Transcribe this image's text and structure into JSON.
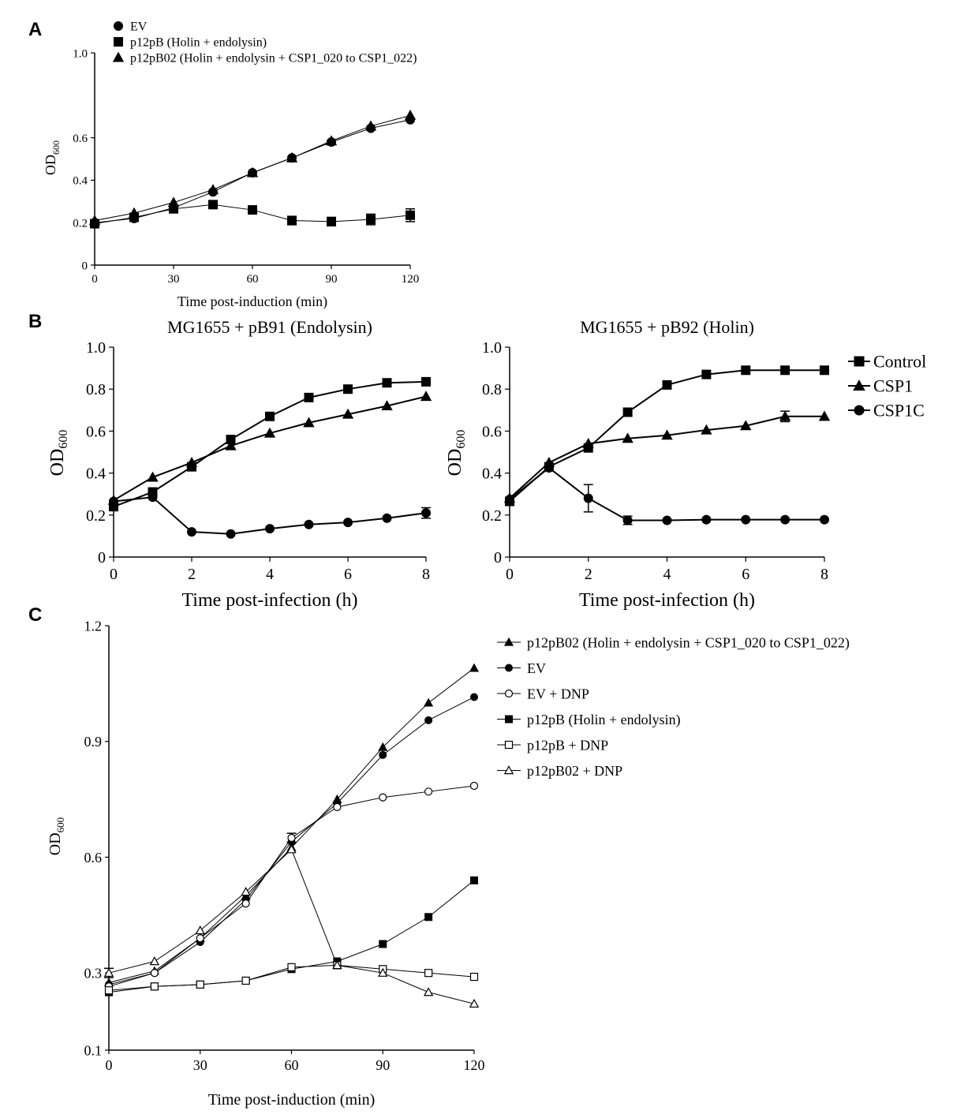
{
  "panels": [
    {
      "letter": "A",
      "type": "line",
      "title": "",
      "xlabel": "Time post-induction (min)",
      "ylabel_main": "OD",
      "ylabel_sub": "600",
      "xlim": [
        0,
        120
      ],
      "ylim": [
        0,
        1.0
      ],
      "xticks": [
        0,
        30,
        60,
        90,
        120
      ],
      "xtick_labels": [
        "0",
        "30",
        "60",
        "90",
        "120"
      ],
      "yticks": [
        0,
        0.2,
        0.4,
        0.6,
        1.0
      ],
      "ytick_labels": [
        "0",
        "0.2",
        "0.4",
        "0.6",
        "1.0"
      ],
      "grid": false,
      "legend_position": "top-left",
      "series": [
        {
          "name": "EV",
          "marker": "circle",
          "fill": "filled",
          "x": [
            0,
            15,
            30,
            45,
            60,
            75,
            90,
            105,
            120
          ],
          "y": [
            0.2,
            0.22,
            0.27,
            0.345,
            0.435,
            0.505,
            0.58,
            0.645,
            0.685
          ]
        },
        {
          "name": "p12pB (Holin + endolysin)",
          "marker": "square",
          "fill": "filled",
          "x": [
            0,
            15,
            30,
            45,
            60,
            75,
            90,
            105,
            120
          ],
          "y": [
            0.195,
            0.225,
            0.265,
            0.285,
            0.26,
            0.21,
            0.205,
            0.215,
            0.235
          ],
          "err": [
            0,
            0,
            0,
            0,
            0.015,
            0.02,
            0.02,
            0.025,
            0.03
          ]
        },
        {
          "name": "p12pB02 (Holin + endolysin + CSP1_020 to CSP1_022)",
          "marker": "triangle",
          "fill": "filled",
          "x": [
            0,
            15,
            30,
            45,
            60,
            75,
            90,
            105,
            120
          ],
          "y": [
            0.21,
            0.245,
            0.295,
            0.355,
            0.435,
            0.505,
            0.585,
            0.655,
            0.705
          ]
        }
      ]
    },
    {
      "letter": "B",
      "type": "line",
      "title": "MG1655 + pB91 (Endolysin)",
      "xlabel": "Time post-infection (h)",
      "ylabel_main": "OD",
      "ylabel_sub": "600",
      "xlim": [
        0,
        8
      ],
      "ylim": [
        0,
        1.0
      ],
      "xticks": [
        0,
        2,
        4,
        6,
        8
      ],
      "xtick_labels": [
        "0",
        "2",
        "4",
        "6",
        "8"
      ],
      "yticks": [
        0,
        0.2,
        0.4,
        0.6,
        0.8,
        1.0
      ],
      "ytick_labels": [
        "0",
        "0.2",
        "0.4",
        "0.6",
        "0.8",
        "1.0"
      ],
      "grid": false,
      "series": [
        {
          "name": "Control",
          "marker": "square",
          "fill": "filled",
          "x": [
            0,
            1,
            2,
            3,
            4,
            5,
            6,
            7,
            8
          ],
          "y": [
            0.24,
            0.31,
            0.43,
            0.56,
            0.67,
            0.76,
            0.8,
            0.83,
            0.835
          ]
        },
        {
          "name": "CSP1",
          "marker": "triangle",
          "fill": "filled",
          "x": [
            0,
            1,
            2,
            3,
            4,
            5,
            6,
            7,
            8
          ],
          "y": [
            0.27,
            0.38,
            0.45,
            0.53,
            0.59,
            0.64,
            0.68,
            0.72,
            0.765
          ]
        },
        {
          "name": "CSP1C",
          "marker": "circle",
          "fill": "filled",
          "x": [
            0,
            1,
            2,
            3,
            4,
            5,
            6,
            7,
            8
          ],
          "y": [
            0.265,
            0.285,
            0.12,
            0.11,
            0.135,
            0.155,
            0.165,
            0.185,
            0.21
          ],
          "err": [
            0,
            0,
            0,
            0,
            0,
            0,
            0,
            0,
            0.025
          ]
        }
      ]
    },
    {
      "letter": "",
      "type": "line",
      "title": "MG1655 + pB92 (Holin)",
      "xlabel": "Time post-infection (h)",
      "ylabel_main": "OD",
      "ylabel_sub": "600",
      "xlim": [
        0,
        8
      ],
      "ylim": [
        0,
        1.0
      ],
      "xticks": [
        0,
        2,
        4,
        6,
        8
      ],
      "xtick_labels": [
        "0",
        "2",
        "4",
        "6",
        "8"
      ],
      "yticks": [
        0,
        0.2,
        0.4,
        0.6,
        0.8,
        1.0
      ],
      "ytick_labels": [
        "0",
        "0.2",
        "0.4",
        "0.6",
        "0.8",
        "1.0"
      ],
      "grid": false,
      "legend_position": "right",
      "series": [
        {
          "name": "Control",
          "marker": "square",
          "fill": "filled",
          "x": [
            0,
            1,
            2,
            3,
            4,
            5,
            6,
            7,
            8
          ],
          "y": [
            0.265,
            0.43,
            0.52,
            0.69,
            0.82,
            0.87,
            0.89,
            0.89,
            0.89
          ]
        },
        {
          "name": "CSP1",
          "marker": "triangle",
          "fill": "filled",
          "x": [
            0,
            1,
            2,
            3,
            4,
            5,
            6,
            7,
            8
          ],
          "y": [
            0.28,
            0.45,
            0.54,
            0.565,
            0.58,
            0.605,
            0.625,
            0.67,
            0.67
          ],
          "err": [
            0,
            0,
            0,
            0,
            0,
            0,
            0,
            0.025,
            0
          ]
        },
        {
          "name": "CSP1C",
          "marker": "circle",
          "fill": "filled",
          "x": [
            0,
            1,
            2,
            3,
            4,
            5,
            6,
            7,
            8
          ],
          "y": [
            0.275,
            0.425,
            0.28,
            0.175,
            0.175,
            0.178,
            0.178,
            0.178,
            0.178
          ],
          "err": [
            0,
            0,
            0.065,
            0.02,
            0,
            0,
            0,
            0,
            0
          ]
        }
      ]
    },
    {
      "letter": "C",
      "type": "line",
      "title": "",
      "xlabel": "Time post-induction (min)",
      "ylabel_main": "OD",
      "ylabel_sub": "600",
      "xlim": [
        0,
        120
      ],
      "ylim": [
        0.1,
        1.2
      ],
      "xticks": [
        0,
        30,
        60,
        90,
        120
      ],
      "xtick_labels": [
        "0",
        "30",
        "60",
        "90",
        "120"
      ],
      "yticks": [
        0.1,
        0.3,
        0.6,
        0.9,
        1.2
      ],
      "ytick_labels": [
        "0.1",
        "0.3",
        "0.6",
        "0.9",
        "1.2"
      ],
      "grid": false,
      "legend_position": "top-right",
      "series": [
        {
          "name": "p12pB02 (Holin + endolysin + CSP1_020 to CSP1_022)",
          "marker": "triangle",
          "fill": "filled",
          "x": [
            0,
            15,
            30,
            45,
            60,
            75,
            90,
            105,
            120
          ],
          "y": [
            0.275,
            0.305,
            0.39,
            0.5,
            0.625,
            0.75,
            0.885,
            1.0,
            1.09
          ]
        },
        {
          "name": "EV",
          "marker": "circle",
          "fill": "filled",
          "x": [
            0,
            15,
            30,
            45,
            60,
            75,
            90,
            105,
            120
          ],
          "y": [
            0.27,
            0.3,
            0.38,
            0.49,
            0.64,
            0.74,
            0.865,
            0.955,
            1.015
          ]
        },
        {
          "name": "EV + DNP",
          "marker": "circle",
          "fill": "open",
          "x": [
            0,
            15,
            30,
            45,
            60,
            75,
            90,
            105,
            120
          ],
          "y": [
            0.265,
            0.3,
            0.39,
            0.48,
            0.65,
            0.73,
            0.755,
            0.77,
            0.785
          ],
          "err": [
            0,
            0,
            0,
            0,
            0.012,
            0,
            0,
            0,
            0
          ]
        },
        {
          "name": "p12pB (Holin + endolysin)",
          "marker": "square",
          "fill": "filled",
          "x": [
            0,
            15,
            30,
            45,
            60,
            75,
            90,
            105,
            120
          ],
          "y": [
            0.25,
            0.265,
            0.27,
            0.28,
            0.31,
            0.33,
            0.375,
            0.445,
            0.54
          ]
        },
        {
          "name": "p12pB + DNP",
          "marker": "square",
          "fill": "open",
          "x": [
            0,
            15,
            30,
            45,
            60,
            75,
            90,
            105,
            120
          ],
          "y": [
            0.255,
            0.265,
            0.27,
            0.28,
            0.315,
            0.32,
            0.31,
            0.3,
            0.29
          ]
        },
        {
          "name": "p12pB02 + DNP",
          "marker": "triangle",
          "fill": "open",
          "x": [
            0,
            15,
            30,
            45,
            60,
            75,
            90,
            105,
            120
          ],
          "y": [
            0.3,
            0.33,
            0.41,
            0.51,
            0.62,
            0.32,
            0.3,
            0.25,
            0.22
          ],
          "err": [
            0.012,
            0,
            0,
            0,
            0,
            0,
            0,
            0,
            0
          ]
        }
      ]
    }
  ],
  "chart_data": [
    {
      "type": "line",
      "title": "",
      "xlabel": "Time post-induction (min)",
      "ylabel": "OD600",
      "xlim": [
        0,
        120
      ],
      "ylim": [
        0,
        1.0
      ],
      "series": [
        {
          "name": "EV",
          "x": [
            0,
            15,
            30,
            45,
            60,
            75,
            90,
            105,
            120
          ],
          "values": [
            0.2,
            0.22,
            0.27,
            0.345,
            0.435,
            0.505,
            0.58,
            0.645,
            0.685
          ]
        },
        {
          "name": "p12pB (Holin + endolysin)",
          "x": [
            0,
            15,
            30,
            45,
            60,
            75,
            90,
            105,
            120
          ],
          "values": [
            0.195,
            0.225,
            0.265,
            0.285,
            0.26,
            0.21,
            0.205,
            0.215,
            0.235
          ]
        },
        {
          "name": "p12pB02 (Holin + endolysin + CSP1_020 to CSP1_022)",
          "x": [
            0,
            15,
            30,
            45,
            60,
            75,
            90,
            105,
            120
          ],
          "values": [
            0.21,
            0.245,
            0.295,
            0.355,
            0.435,
            0.505,
            0.585,
            0.655,
            0.705
          ]
        }
      ]
    },
    {
      "type": "line",
      "title": "MG1655 + pB91 (Endolysin)",
      "xlabel": "Time post-infection (h)",
      "ylabel": "OD600",
      "xlim": [
        0,
        8
      ],
      "ylim": [
        0,
        1.0
      ],
      "series": [
        {
          "name": "Control",
          "x": [
            0,
            1,
            2,
            3,
            4,
            5,
            6,
            7,
            8
          ],
          "values": [
            0.24,
            0.31,
            0.43,
            0.56,
            0.67,
            0.76,
            0.8,
            0.83,
            0.835
          ]
        },
        {
          "name": "CSP1",
          "x": [
            0,
            1,
            2,
            3,
            4,
            5,
            6,
            7,
            8
          ],
          "values": [
            0.27,
            0.38,
            0.45,
            0.53,
            0.59,
            0.64,
            0.68,
            0.72,
            0.765
          ]
        },
        {
          "name": "CSP1C",
          "x": [
            0,
            1,
            2,
            3,
            4,
            5,
            6,
            7,
            8
          ],
          "values": [
            0.265,
            0.285,
            0.12,
            0.11,
            0.135,
            0.155,
            0.165,
            0.185,
            0.21
          ]
        }
      ]
    },
    {
      "type": "line",
      "title": "MG1655 + pB92 (Holin)",
      "xlabel": "Time post-infection (h)",
      "ylabel": "OD600",
      "xlim": [
        0,
        8
      ],
      "ylim": [
        0,
        1.0
      ],
      "series": [
        {
          "name": "Control",
          "x": [
            0,
            1,
            2,
            3,
            4,
            5,
            6,
            7,
            8
          ],
          "values": [
            0.265,
            0.43,
            0.52,
            0.69,
            0.82,
            0.87,
            0.89,
            0.89,
            0.89
          ]
        },
        {
          "name": "CSP1",
          "x": [
            0,
            1,
            2,
            3,
            4,
            5,
            6,
            7,
            8
          ],
          "values": [
            0.28,
            0.45,
            0.54,
            0.565,
            0.58,
            0.605,
            0.625,
            0.67,
            0.67
          ]
        },
        {
          "name": "CSP1C",
          "x": [
            0,
            1,
            2,
            3,
            4,
            5,
            6,
            7,
            8
          ],
          "values": [
            0.275,
            0.425,
            0.28,
            0.175,
            0.175,
            0.178,
            0.178,
            0.178,
            0.178
          ]
        }
      ]
    },
    {
      "type": "line",
      "title": "",
      "xlabel": "Time post-induction (min)",
      "ylabel": "OD600",
      "xlim": [
        0,
        120
      ],
      "ylim": [
        0.1,
        1.2
      ],
      "series": [
        {
          "name": "p12pB02 (Holin + endolysin + CSP1_020 to CSP1_022)",
          "x": [
            0,
            15,
            30,
            45,
            60,
            75,
            90,
            105,
            120
          ],
          "values": [
            0.275,
            0.305,
            0.39,
            0.5,
            0.625,
            0.75,
            0.885,
            1.0,
            1.09
          ]
        },
        {
          "name": "EV",
          "x": [
            0,
            15,
            30,
            45,
            60,
            75,
            90,
            105,
            120
          ],
          "values": [
            0.27,
            0.3,
            0.38,
            0.49,
            0.64,
            0.74,
            0.865,
            0.955,
            1.015
          ]
        },
        {
          "name": "EV + DNP",
          "x": [
            0,
            15,
            30,
            45,
            60,
            75,
            90,
            105,
            120
          ],
          "values": [
            0.265,
            0.3,
            0.39,
            0.48,
            0.65,
            0.73,
            0.755,
            0.77,
            0.785
          ]
        },
        {
          "name": "p12pB (Holin + endolysin)",
          "x": [
            0,
            15,
            30,
            45,
            60,
            75,
            90,
            105,
            120
          ],
          "values": [
            0.25,
            0.265,
            0.27,
            0.28,
            0.31,
            0.33,
            0.375,
            0.445,
            0.54
          ]
        },
        {
          "name": "p12pB + DNP",
          "x": [
            0,
            15,
            30,
            45,
            60,
            75,
            90,
            105,
            120
          ],
          "values": [
            0.255,
            0.265,
            0.27,
            0.28,
            0.315,
            0.32,
            0.31,
            0.3,
            0.29
          ]
        },
        {
          "name": "p12pB02 + DNP",
          "x": [
            0,
            15,
            30,
            45,
            60,
            75,
            90,
            105,
            120
          ],
          "values": [
            0.3,
            0.33,
            0.41,
            0.51,
            0.62,
            0.32,
            0.3,
            0.25,
            0.22
          ]
        }
      ]
    }
  ]
}
